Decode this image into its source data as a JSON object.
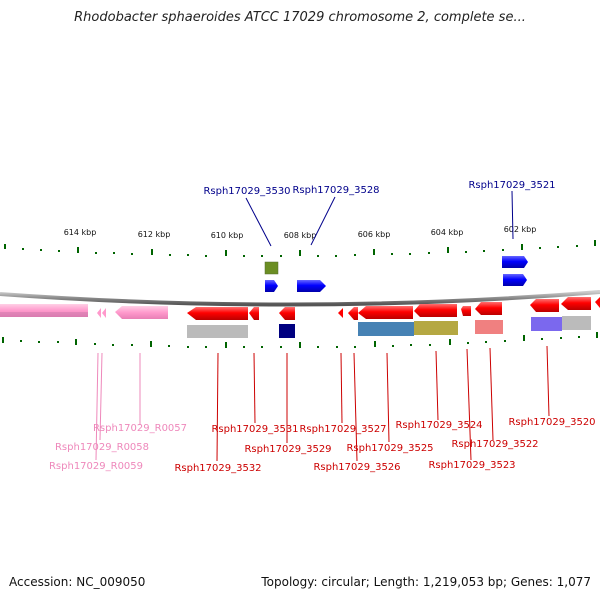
{
  "title": "Rhodobacter sphaeroides ATCC 17029 chromosome 2, complete se...",
  "footer": {
    "accession": "Accession: NC_009050",
    "topology": "Topology: circular; Length: 1,219,053 bp; Genes: 1,077"
  },
  "ruler": {
    "ticks": [
      {
        "label": "614 kbp"
      },
      {
        "label": "612 kbp"
      },
      {
        "label": "610 kbp"
      },
      {
        "label": "608 kbp"
      },
      {
        "label": "606 kbp"
      },
      {
        "label": "604 kbp"
      },
      {
        "label": "602 kbp"
      }
    ]
  },
  "gene_labels": {
    "top": [
      "Rsph17029_3530",
      "Rsph17029_3528",
      "Rsph17029_3521"
    ],
    "bottom": [
      "Rsph17029_R0057",
      "Rsph17029_R0058",
      "Rsph17029_R0059",
      "Rsph17029_3531",
      "Rsph17029_3532",
      "Rsph17029_3529",
      "Rsph17029_3527",
      "Rsph17029_3526",
      "Rsph17029_3525",
      "Rsph17029_3524",
      "Rsph17029_3522",
      "Rsph17029_3523",
      "Rsph17029_3520"
    ]
  },
  "colors": {
    "plus_strand": "#0000ff",
    "minus_strand": "#ff0000",
    "rna": "#ff99cc",
    "ruler": "#006400",
    "backbone": "#888888",
    "label_top": "#00008b",
    "label_minus": "#cc0000",
    "label_rna": "#ee88bb"
  }
}
